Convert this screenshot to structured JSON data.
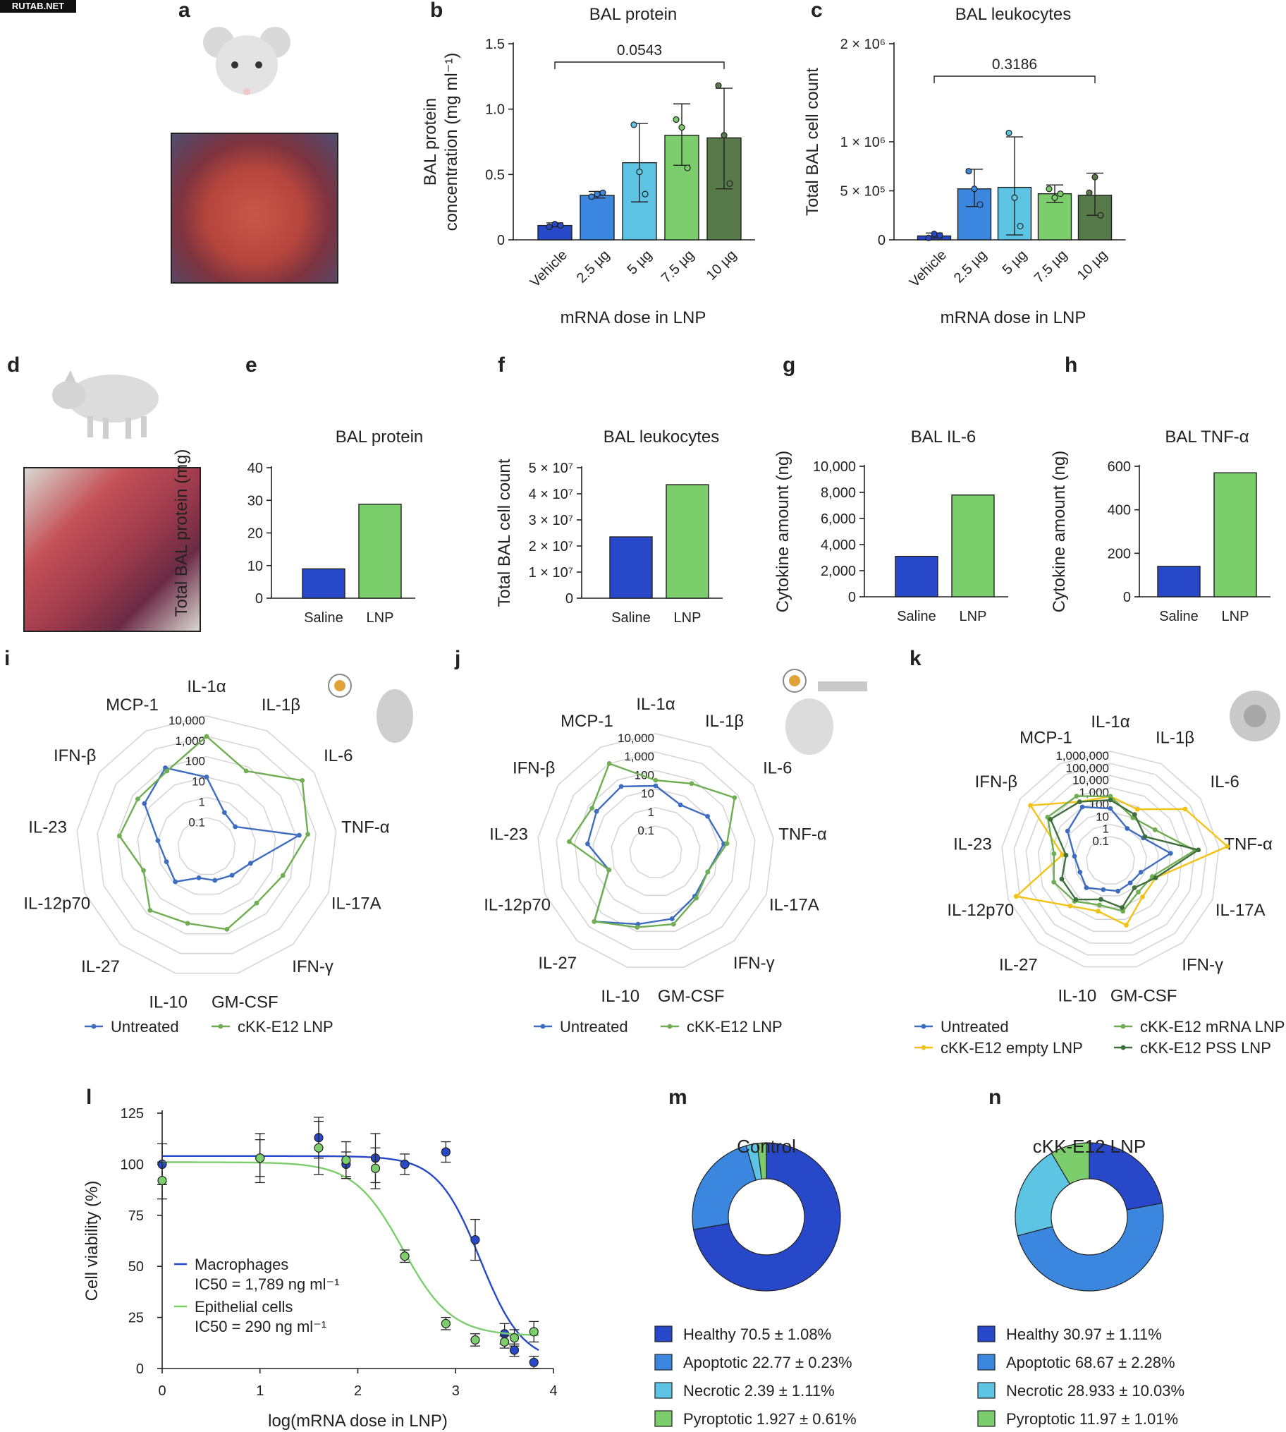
{
  "watermark": "RUTAB.NET",
  "colors": {
    "blue_dark": "#2748c8",
    "blue_mid": "#3b86de",
    "blue_light": "#5ec4e4",
    "green_light": "#7ccd6c",
    "green_dark": "#58794a",
    "yellow": "#f2c316",
    "green_mid": "#6fae52",
    "green_deep": "#3f6f3c",
    "untreated_blue": "#3e6dc0"
  },
  "panel_letters": [
    "a",
    "b",
    "c",
    "d",
    "e",
    "f",
    "g",
    "h",
    "i",
    "j",
    "k",
    "l",
    "m",
    "n"
  ],
  "chart_data": [
    {
      "id": "b",
      "type": "bar",
      "title": "BAL protein",
      "ylabel": "BAL protein concentration (mg ml⁻¹)",
      "xlabel": "mRNA dose in LNP",
      "categories": [
        "Vehicle",
        "2.5 µg",
        "5 µg",
        "7.5 µg",
        "10 µg"
      ],
      "values": [
        0.11,
        0.34,
        0.59,
        0.8,
        0.78
      ],
      "error_low": [
        0.1,
        0.32,
        0.29,
        0.57,
        0.39
      ],
      "error_high": [
        0.13,
        0.37,
        0.89,
        1.04,
        1.16
      ],
      "points": [
        [
          0.1,
          0.12,
          0.11
        ],
        [
          0.33,
          0.35,
          0.36
        ],
        [
          0.88,
          0.52,
          0.35
        ],
        [
          0.92,
          0.86,
          0.55
        ],
        [
          1.18,
          0.8,
          0.43
        ]
      ],
      "ylim": [
        0,
        1.5
      ],
      "yticks": [
        "0",
        "0.5",
        "1.0",
        "1.5"
      ],
      "ytick_values": [
        0,
        0.5,
        1.0,
        1.5
      ],
      "annotation": "0.0543",
      "bar_colors": [
        "#2748c8",
        "#3b86de",
        "#5ec4e4",
        "#7ccd6c",
        "#58794a"
      ]
    },
    {
      "id": "c",
      "type": "bar",
      "title": "BAL leukocytes",
      "ylabel": "Total BAL cell count",
      "xlabel": "mRNA dose in LNP",
      "categories": [
        "Vehicle",
        "2.5 µg",
        "5 µg",
        "7.5 µg",
        "10 µg"
      ],
      "values": [
        40000,
        520000,
        535000,
        470000,
        455000
      ],
      "error_low": [
        20000,
        340000,
        50000,
        380000,
        250000
      ],
      "error_high": [
        70000,
        720000,
        1050000,
        560000,
        680000
      ],
      "points": [
        [
          20000,
          60000,
          45000
        ],
        [
          700000,
          520000,
          360000
        ],
        [
          1090000,
          430000,
          140000
        ],
        [
          520000,
          430000,
          470000
        ],
        [
          480000,
          640000,
          250000
        ]
      ],
      "ylim": [
        0,
        2000000
      ],
      "yticks": [
        "0",
        "5 × 10⁵",
        "1 × 10⁶",
        "2 × 10⁶"
      ],
      "ytick_values": [
        0,
        500000,
        1000000,
        2000000
      ],
      "annotation": "0.3186",
      "bar_colors": [
        "#2748c8",
        "#3b86de",
        "#5ec4e4",
        "#7ccd6c",
        "#58794a"
      ]
    },
    {
      "id": "e",
      "type": "bar",
      "title": "BAL protein",
      "ylabel": "Total BAL protein (mg)",
      "categories": [
        "Saline",
        "LNP"
      ],
      "values": [
        9,
        28.8
      ],
      "ylim": [
        0,
        40
      ],
      "yticks": [
        "0",
        "10",
        "20",
        "30",
        "40"
      ],
      "ytick_values": [
        0,
        10,
        20,
        30,
        40
      ],
      "bar_colors": [
        "#2748c8",
        "#7ccd6c"
      ]
    },
    {
      "id": "f",
      "type": "bar",
      "title": "BAL leukocytes",
      "ylabel": "Total BAL cell count",
      "categories": [
        "Saline",
        "LNP"
      ],
      "values": [
        23500000,
        43500000
      ],
      "ylim": [
        0,
        50000000
      ],
      "yticks": [
        "0",
        "1 × 10⁷",
        "2 × 10⁷",
        "3 × 10⁷",
        "4 × 10⁷",
        "5 × 10⁷"
      ],
      "ytick_values": [
        0,
        10000000,
        20000000,
        30000000,
        40000000,
        50000000
      ],
      "bar_colors": [
        "#2748c8",
        "#7ccd6c"
      ]
    },
    {
      "id": "g",
      "type": "bar",
      "title": "BAL IL-6",
      "ylabel": "Cytokine amount (ng)",
      "categories": [
        "Saline",
        "LNP"
      ],
      "values": [
        3100,
        7800
      ],
      "ylim": [
        0,
        10000
      ],
      "yticks": [
        "0",
        "2,000",
        "4,000",
        "6,000",
        "8,000",
        "10,000"
      ],
      "ytick_values": [
        0,
        2000,
        4000,
        6000,
        8000,
        10000
      ],
      "bar_colors": [
        "#2748c8",
        "#7ccd6c"
      ]
    },
    {
      "id": "h",
      "type": "bar",
      "title": "BAL TNF-α",
      "ylabel": "Cytokine amount (ng)",
      "categories": [
        "Saline",
        "LNP"
      ],
      "values": [
        140,
        570
      ],
      "ylim": [
        0,
        600
      ],
      "yticks": [
        "0",
        "200",
        "400",
        "600"
      ],
      "ytick_values": [
        0,
        200,
        400,
        600
      ],
      "bar_colors": [
        "#2748c8",
        "#7ccd6c"
      ]
    },
    {
      "id": "i",
      "type": "radar",
      "scale": "log",
      "axes": [
        "IL-1α",
        "IL-1β",
        "IL-6",
        "TNF-α",
        "IL-17A",
        "IFN-γ",
        "GM-CSF",
        "IL-10",
        "IL-27",
        "IL-12p70",
        "IL-23",
        "IFN-β",
        "MCP-1"
      ],
      "rings": [
        "0.1",
        "1",
        "10",
        "100",
        "1,000",
        "10,000"
      ],
      "series": [
        {
          "name": "Untreated",
          "color": "#3e6dc0",
          "values": [
            10,
            0.3,
            0.2,
            150,
            0.8,
            0.3,
            0.2,
            0.15,
            0.8,
            0.5,
            1,
            20,
            90
          ]
        },
        {
          "name": "cKK-E12 LNP",
          "color": "#6fae52",
          "values": [
            1000,
            60,
            2000,
            400,
            40,
            20,
            60,
            30,
            60,
            8,
            80,
            50,
            60
          ]
        }
      ]
    },
    {
      "id": "j",
      "type": "radar",
      "scale": "log",
      "axes": [
        "IL-1α",
        "IL-1β",
        "IL-6",
        "TNF-α",
        "IL-17A",
        "IFN-γ",
        "GM-CSF",
        "IL-10",
        "IL-27",
        "IL-12p70",
        "IL-23",
        "IFN-β",
        "MCP-1"
      ],
      "rings": [
        "0.1",
        "1",
        "10",
        "100",
        "1,000",
        "10,000"
      ],
      "series": [
        {
          "name": "Untreated",
          "color": "#3e6dc0",
          "values": [
            15,
            3,
            10,
            20,
            4,
            6,
            20,
            40,
            400,
            2,
            20,
            30,
            40
          ]
        },
        {
          "name": "cKK-E12 LNP",
          "color": "#6fae52",
          "values": [
            30,
            60,
            600,
            30,
            4,
            8,
            40,
            60,
            400,
            2,
            200,
            60,
            1000
          ]
        }
      ]
    },
    {
      "id": "k",
      "type": "radar",
      "scale": "log",
      "axes": [
        "IL-1α",
        "IL-1β",
        "IL-6",
        "TNF-α",
        "IL-17A",
        "IFN-γ",
        "GM-CSF",
        "IL-10",
        "IL-27",
        "IL-12p70",
        "IL-23",
        "IFN-β",
        "MCP-1"
      ],
      "rings": [
        "0.1",
        "1",
        "10",
        "100",
        "1,000",
        "10,000",
        "100,000",
        "1,000,000"
      ],
      "series": [
        {
          "name": "Untreated",
          "color": "#3e6dc0",
          "values": [
            20,
            1,
            2,
            100,
            0.5,
            0.3,
            0.4,
            0.3,
            1,
            0.5,
            1,
            20,
            100
          ]
        },
        {
          "name": "cKK-E12 empty LNP",
          "color": "#f2c316",
          "values": [
            200,
            60,
            30000,
            5000000,
            10,
            10,
            300,
            20,
            100,
            200000,
            10,
            100000,
            300
          ]
        },
        {
          "name": "cKK-E12 mRNA LNP",
          "color": "#6fae52",
          "values": [
            200,
            10,
            30,
            10000,
            5,
            3,
            20,
            6,
            30,
            100,
            50,
            2000,
            1000
          ]
        },
        {
          "name": "cKK-E12 PSS LNP",
          "color": "#3f6f3c",
          "values": [
            100,
            20,
            3,
            20000,
            10,
            1,
            10,
            2,
            20,
            20,
            5,
            1000,
            300
          ]
        }
      ]
    },
    {
      "id": "l",
      "type": "line",
      "xlabel": "log(mRNA dose in LNP)",
      "ylabel": "Cell viability (%)",
      "xlim": [
        0,
        4
      ],
      "ylim": [
        0,
        125
      ],
      "xticks": [
        "0",
        "1",
        "2",
        "3",
        "4"
      ],
      "xtick_values": [
        0,
        1,
        2,
        3,
        4
      ],
      "yticks": [
        "0",
        "25",
        "50",
        "75",
        "100",
        "125"
      ],
      "ytick_values": [
        0,
        25,
        50,
        75,
        100,
        125
      ],
      "series": [
        {
          "name": "Macrophages",
          "note": "IC50 = 1,789 ng ml⁻¹",
          "color": "#2748c8",
          "x": [
            0,
            1,
            1.6,
            1.88,
            2.18,
            2.48,
            2.9,
            3.2,
            3.5,
            3.6,
            3.8
          ],
          "y": [
            100,
            103,
            113,
            100,
            103,
            100,
            106,
            63,
            17,
            9,
            3
          ],
          "err": [
            10,
            9,
            10,
            6,
            12,
            5,
            5,
            10,
            5,
            3,
            3
          ],
          "curve": {
            "top": 104,
            "bottom": 3,
            "log_ic50": 3.25,
            "slope": 8
          }
        },
        {
          "name": "Epithelial cells",
          "note": "IC50 = 290 ng ml⁻¹",
          "color": "#7ccd6c",
          "x": [
            0,
            1,
            1.6,
            1.88,
            2.18,
            2.48,
            2.9,
            3.2,
            3.5,
            3.6,
            3.8
          ],
          "y": [
            92,
            103,
            108,
            102,
            98,
            55,
            22,
            14,
            13,
            15,
            18
          ],
          "err": [
            9,
            12,
            13,
            9,
            10,
            3,
            3,
            3,
            3,
            4,
            5
          ],
          "curve": {
            "top": 101,
            "bottom": 16,
            "log_ic50": 2.46,
            "slope": 7
          }
        }
      ]
    },
    {
      "id": "m",
      "type": "pie",
      "title": "Control",
      "labels": [
        "Healthy",
        "Apoptotic",
        "Necrotic",
        "Pyroptotic"
      ],
      "values": [
        70.5,
        22.77,
        2.39,
        1.927
      ],
      "legend": [
        "Healthy 70.5 ± 1.08%",
        "Apoptotic 22.77 ± 0.23%",
        "Necrotic 2.39 ± 1.11%",
        "Pyroptotic 1.927 ± 0.61%"
      ],
      "colors": [
        "#2748c8",
        "#3b86de",
        "#5ec4e4",
        "#7ccd6c"
      ]
    },
    {
      "id": "n",
      "type": "pie",
      "title": "cKK-E12 LNP",
      "labels": [
        "Healthy",
        "Apoptotic",
        "Necrotic",
        "Pyroptotic"
      ],
      "values": [
        30.97,
        68.67,
        28.933,
        11.97
      ],
      "legend": [
        "Healthy 30.97 ± 1.11%",
        "Apoptotic 68.67 ± 2.28%",
        "Necrotic 28.933 ± 10.03%",
        "Pyroptotic 11.97 ± 1.01%"
      ],
      "colors": [
        "#2748c8",
        "#3b86de",
        "#5ec4e4",
        "#7ccd6c"
      ]
    }
  ]
}
